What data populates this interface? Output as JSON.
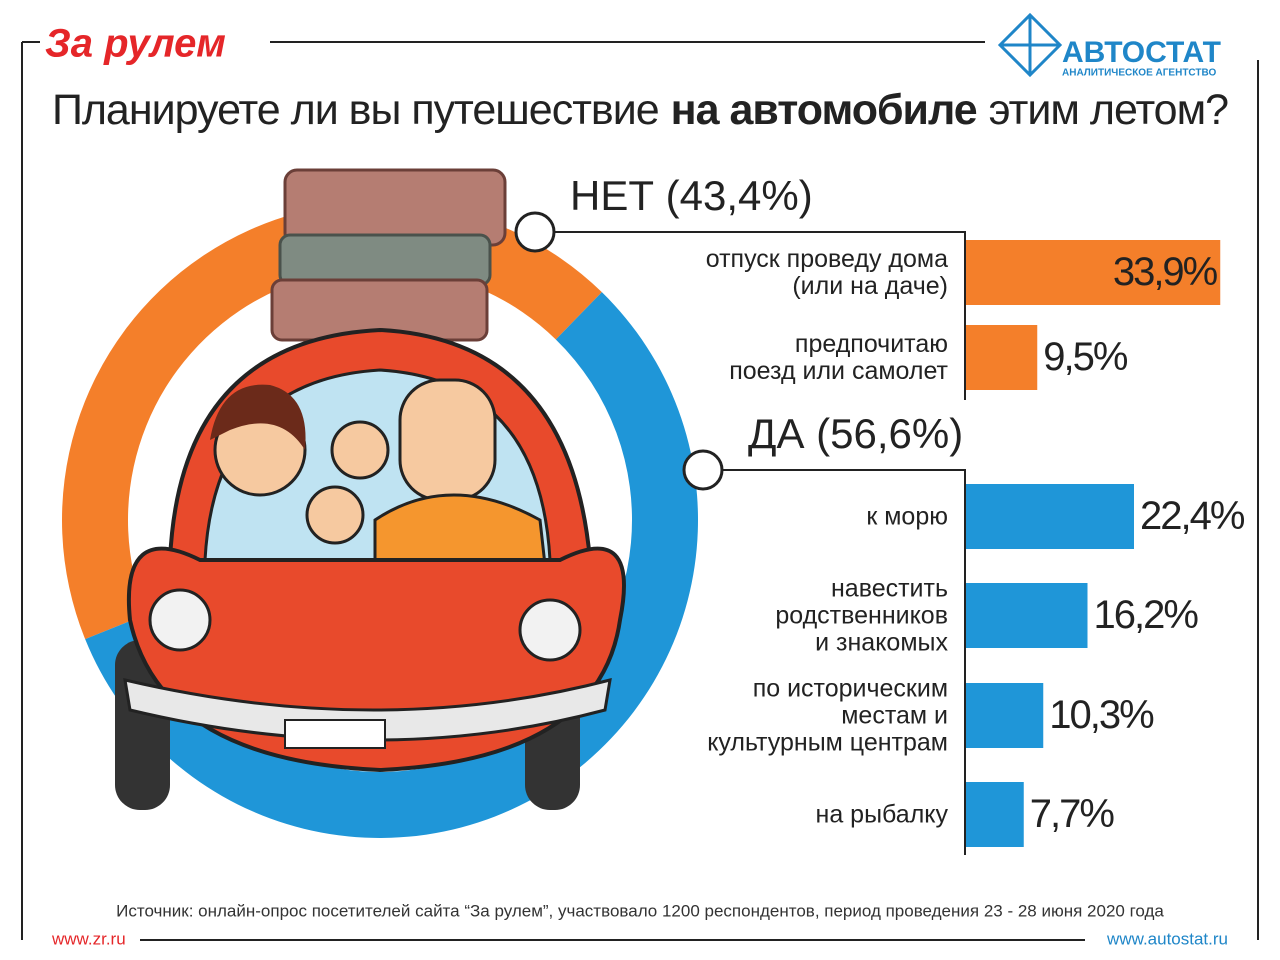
{
  "header": {
    "brand": "За рулем",
    "logo": "АВТОСТАТ",
    "logo_sub": "АНАЛИТИЧЕСКОЕ АГЕНТСТВО",
    "title_parts": [
      "Планируете ли вы путешествие",
      "на автомобиле",
      "этим летом?"
    ]
  },
  "chart_data": [
    {
      "type": "pie",
      "values": [
        43.4,
        56.6
      ],
      "value_labels": [
        "НЕТ (43,4%)",
        "ДА (56,6%)"
      ],
      "colors": [
        "#f47f2a",
        "#1f96d8"
      ]
    },
    {
      "type": "bar",
      "orientation": "horizontal",
      "categories": [
        "отпуск проведу дома\n(или на даче)",
        "предпочитаю\nпоезд или самолет",
        "к морю",
        "навестить\nродственников\nи знакомых",
        "по историческим\nместам и\nкультурным центрам",
        "на рыбалку"
      ],
      "values": [
        33.9,
        9.5,
        22.4,
        16.2,
        10.3,
        7.7
      ],
      "value_labels": [
        "33,9%",
        "9,5%",
        "22,4%",
        "16,2%",
        "10,3%",
        "7,7%"
      ],
      "colors": [
        "#f47f2a",
        "#f47f2a",
        "#1f96d8",
        "#1f96d8",
        "#1f96d8",
        "#1f96d8"
      ]
    }
  ],
  "footer": {
    "source": "Источник: онлайн-опрос посетителей сайта “За рулем”, участвовало 1200 респондентов, период проведения 23 - 28 июня 2020 года",
    "left_url": "www.zr.ru",
    "right_url": "www.autostat.ru"
  }
}
